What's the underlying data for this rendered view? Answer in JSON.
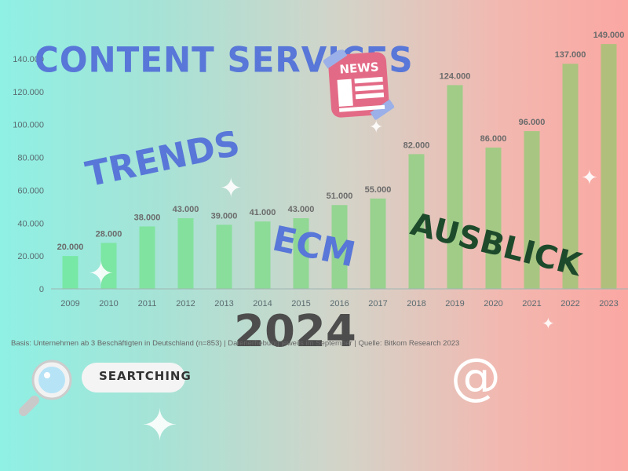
{
  "chart_data": {
    "type": "bar",
    "categories": [
      "2009",
      "2010",
      "2011",
      "2012",
      "2013",
      "2014",
      "2015",
      "2016",
      "2017",
      "2018",
      "2019",
      "2020",
      "2021",
      "2022",
      "2023"
    ],
    "values": [
      20000,
      28000,
      38000,
      43000,
      39000,
      41000,
      43000,
      51000,
      55000,
      82000,
      124000,
      86000,
      96000,
      137000,
      149000
    ],
    "value_labels": [
      "20.000",
      "28.000",
      "38.000",
      "43.000",
      "39.000",
      "41.000",
      "43.000",
      "51.000",
      "55.000",
      "82.000",
      "124.000",
      "86.000",
      "96.000",
      "137.000",
      "149.000"
    ],
    "y_ticks": [
      0,
      20000,
      40000,
      60000,
      80000,
      100000,
      120000,
      140000
    ],
    "y_tick_labels": [
      "0",
      "20.000",
      "40.000",
      "60.000",
      "80.000",
      "100.000",
      "120.000",
      "140.000"
    ],
    "ylim": [
      0,
      150000
    ],
    "grid": false,
    "colors": [
      "#78e8a6",
      "#7ce6a3",
      "#80e3a0",
      "#84e19d",
      "#88de9a",
      "#8cdb97",
      "#90d894",
      "#94d591",
      "#98d28e",
      "#9ccf8b",
      "#a0cc88",
      "#a4c985",
      "#a8c682",
      "#acc37f",
      "#b0c07c"
    ],
    "title": "",
    "xlabel": "",
    "ylabel": ""
  },
  "overlay": {
    "title_content": "CONTENT SERVICES",
    "title_trends": "TRENDS",
    "title_ecm": "ECM",
    "title_ausblick": "AUSBLICK",
    "title_year": "2024",
    "news_label": "NEWS",
    "search_label": "SEARTCHING",
    "at_symbol": "@"
  },
  "footnote": "Basis: Unternehmen ab 3 Beschäftigten in Deutschland (n=853) | Datenerhebung jeweils im September | Quelle: Bitkom Research 2023",
  "colors": {
    "accent_blue": "#5877d8",
    "accent_green": "#1e4a2c",
    "news_pink": "#e36a86",
    "tape_blue": "#9bb0e8"
  }
}
